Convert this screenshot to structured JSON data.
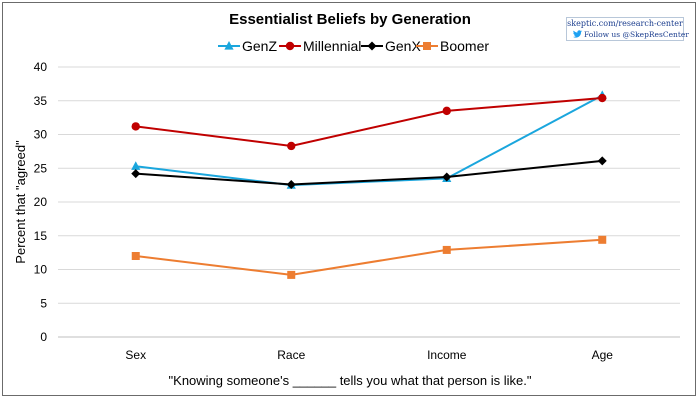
{
  "chart_data": {
    "type": "line",
    "title": "Essentialist Beliefs by Generation",
    "categories": [
      "Sex",
      "Race",
      "Income",
      "Age"
    ],
    "ylabel": "Percent that \"agreed\"",
    "xlabel": "\"Knowing someone's ______ tells you what that person is like.\"",
    "ylim": [
      0,
      40
    ],
    "yticks": [
      0,
      5,
      10,
      15,
      20,
      25,
      30,
      35,
      40
    ],
    "grid": true,
    "legend_position": "top",
    "series": [
      {
        "name": "GenZ",
        "color": "#1aa6dd",
        "marker": "triangle",
        "values": [
          25.3,
          22.5,
          23.5,
          35.8
        ]
      },
      {
        "name": "Millennial",
        "color": "#c00000",
        "marker": "circle",
        "values": [
          31.2,
          28.3,
          33.5,
          35.4
        ]
      },
      {
        "name": "GenX",
        "color": "#000000",
        "marker": "diamond",
        "values": [
          24.2,
          22.6,
          23.7,
          26.1
        ]
      },
      {
        "name": "Boomer",
        "color": "#ed7d31",
        "marker": "square",
        "values": [
          12.0,
          9.2,
          12.9,
          14.4
        ]
      }
    ]
  },
  "source": {
    "url": "skeptic.com/research-center",
    "follow": "Follow us @SkepResCenter",
    "icon": "twitter-icon"
  }
}
